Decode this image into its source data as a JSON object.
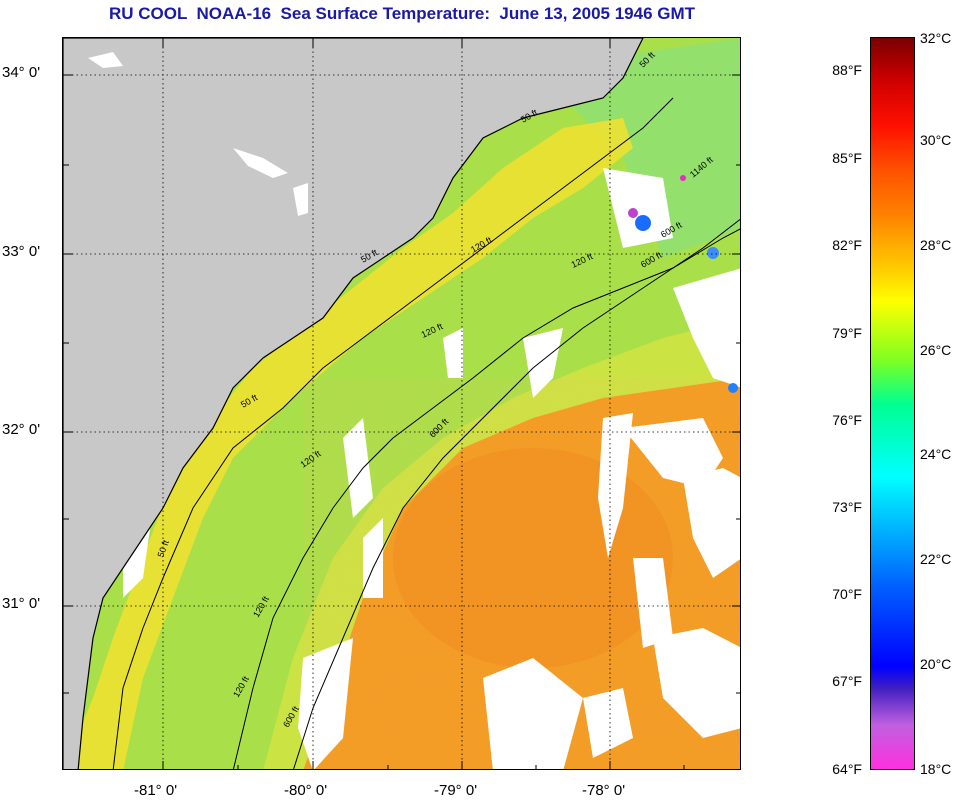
{
  "title": "RU COOL  NOAA-16  Sea Surface Temperature:  June 13, 2005 1946 GMT",
  "latitude_labels": [
    "34° 0'",
    "33° 0'",
    "32° 0'",
    "31° 0'"
  ],
  "longitude_labels": [
    "-81° 0'",
    "-80° 0'",
    "-79° 0'",
    "-78° 0'"
  ],
  "contour_labels": [
    "50 ft",
    "50 ft",
    "120 ft",
    "600 ft",
    "120 ft",
    "600 ft",
    "50 ft",
    "120 ft",
    "50 ft",
    "120 ft",
    "120 ft",
    "600 ft",
    "50 ft",
    "120 ft",
    "1140 ft",
    "600 ft"
  ],
  "colorbar": {
    "fahrenheit_labels": [
      "88°F",
      "85°F",
      "82°F",
      "79°F",
      "76°F",
      "73°F",
      "70°F",
      "67°F",
      "64°F"
    ],
    "celsius_labels": [
      "32°C",
      "30°C",
      "28°C",
      "26°C",
      "24°C",
      "22°C",
      "20°C",
      "18°C"
    ]
  },
  "colors": {
    "title": "#1a1aa6",
    "land": "#c8c8c8",
    "cloud_mask": "#ffffff",
    "nearshore": "#f2e030",
    "shelf": "#a9e04a",
    "gulf_stream": "#f39a22"
  }
}
